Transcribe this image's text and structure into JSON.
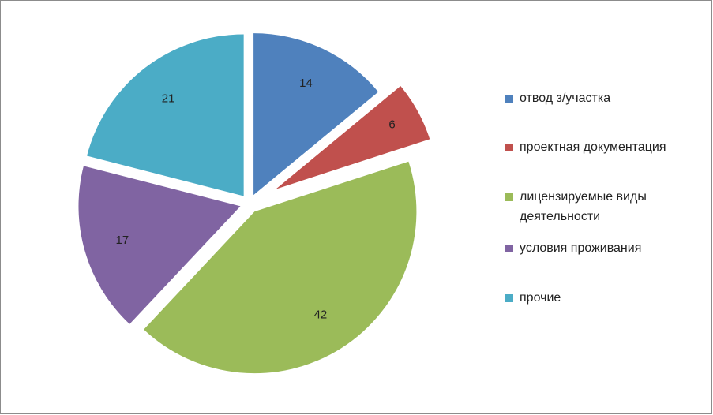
{
  "chart_data": {
    "type": "pie",
    "categories": [
      "отвод з/участка",
      "проектная документация",
      "лицензируемые виды деятельности",
      "условия проживания",
      "прочие"
    ],
    "values": [
      14,
      6,
      42,
      17,
      21
    ],
    "colors": [
      "#4f81bd",
      "#c0504d",
      "#9bbb59",
      "#8064a2",
      "#4bacc6"
    ],
    "legend": "right"
  }
}
